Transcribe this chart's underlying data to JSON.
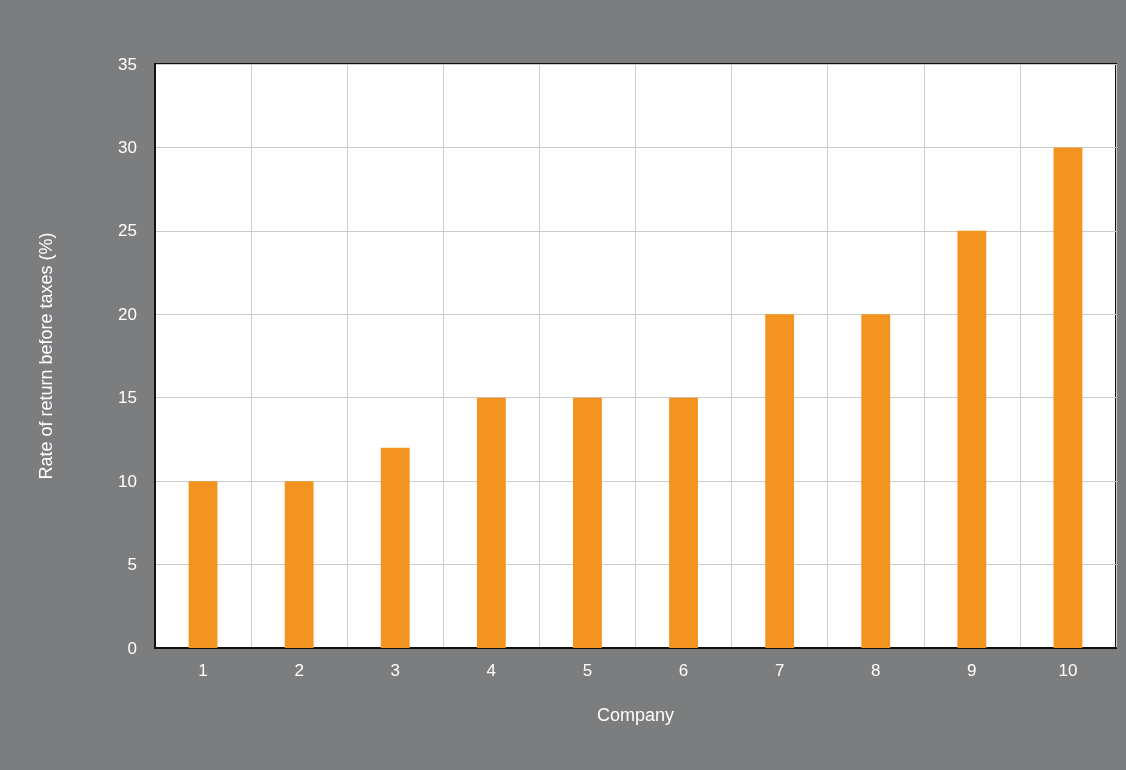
{
  "chart_data": {
    "type": "bar",
    "xlabel": "Company",
    "ylabel": "Rate of return before taxes (%)",
    "categories": [
      "1",
      "2",
      "3",
      "4",
      "5",
      "6",
      "7",
      "8",
      "9",
      "10"
    ],
    "values": [
      10,
      10,
      12,
      15,
      15,
      15,
      20,
      20,
      25,
      30
    ],
    "color": "#f39420",
    "ylim": [
      0,
      35
    ],
    "yticks": [
      0,
      5,
      10,
      15,
      20,
      25,
      30,
      35
    ],
    "grid": true
  }
}
